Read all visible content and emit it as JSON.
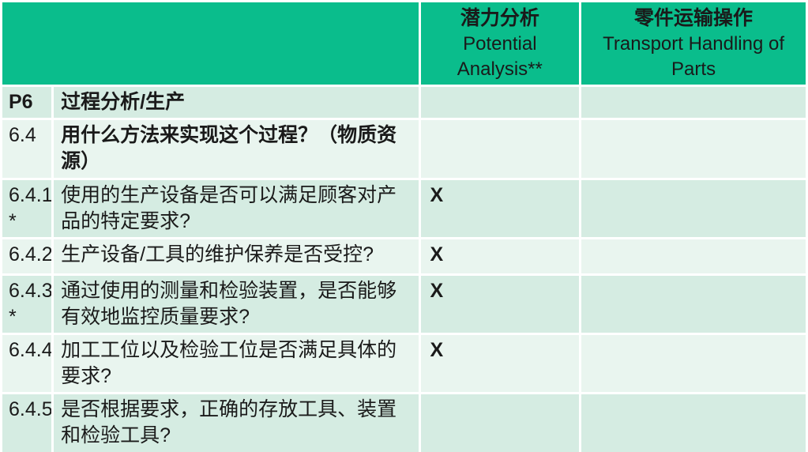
{
  "colors": {
    "header_green": "#0abd8c",
    "row_dark_mint": "#d5ece2",
    "row_light_mint": "#e9f5ef",
    "gridline": "#ffffff",
    "text": "#1a1a1a"
  },
  "header": {
    "corner": "",
    "potential_zh": "潜力分析",
    "potential_en": "Potential Analysis**",
    "transport_zh": "零件运输操作",
    "transport_en": "Transport Handling of Parts"
  },
  "rows": [
    {
      "num": "P6",
      "question": "过程分析/生产",
      "potential": "",
      "transport": ""
    },
    {
      "num": "6.4",
      "question": "用什么方法来实现这个过程？（物质资源）",
      "potential": "",
      "transport": ""
    },
    {
      "num": "6.4.1\n*",
      "question": "使用的生产设备是否可以满足顾客对产品的特定要求?",
      "potential": "X",
      "transport": ""
    },
    {
      "num": "6.4.2",
      "question": "生产设备/工具的维护保养是否受控?",
      "potential": "X",
      "transport": ""
    },
    {
      "num": "6.4.3\n*",
      "question": "通过使用的测量和检验装置，是否能够有效地监控质量要求?",
      "potential": "X",
      "transport": ""
    },
    {
      "num": "6.4.4",
      "question": "加工工位以及检验工位是否满足具体的要求?",
      "potential": "X",
      "transport": ""
    },
    {
      "num": "6.4.5",
      "question": "是否根据要求，正确的存放工具、装置和检验工具?",
      "potential": "",
      "transport": ""
    }
  ]
}
